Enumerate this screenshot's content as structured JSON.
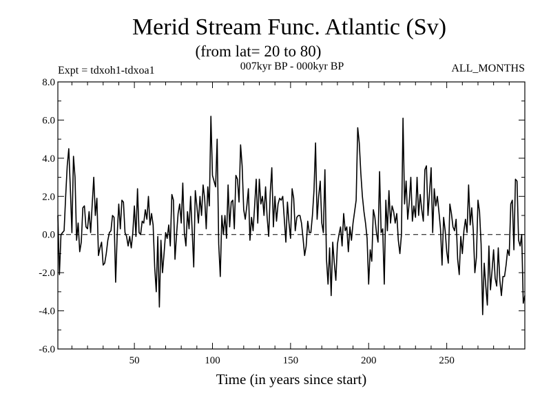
{
  "chart_data": {
    "type": "line",
    "title": "Merid Stream Func. Atlantic (Sv)",
    "subtitle": "(from lat= 20 to 80)",
    "experiment": "Expt = tdxoh1-tdxoa1",
    "period": "007kyr BP - 000kyr BP",
    "months": "ALL_MONTHS",
    "xlabel": "Time (in years since start)",
    "ylabel": "",
    "xlim": [
      1,
      300
    ],
    "ylim": [
      -6.0,
      8.0
    ],
    "x_ticks": [
      50,
      100,
      150,
      200,
      250
    ],
    "x_tick_labels": [
      "50",
      "100",
      "150",
      "200",
      "250"
    ],
    "y_ticks": [
      -6,
      -4,
      -2,
      0,
      2,
      4,
      6,
      8
    ],
    "y_tick_labels": [
      "-6.0",
      "-4.0",
      "-2.0",
      "0.0",
      "2.0",
      "4.0",
      "6.0",
      "8.0"
    ],
    "reference_line": 0.0,
    "series": [
      {
        "name": "Merid Stream Func. Atlantic",
        "x_start": 1,
        "x_step": 1,
        "values": [
          1.0,
          -2.1,
          0.0,
          0.1,
          0.2,
          2.0,
          3.6,
          4.5,
          2.4,
          0.1,
          4.1,
          3.0,
          -0.3,
          0.6,
          -0.9,
          -0.4,
          1.4,
          1.5,
          0.4,
          0.3,
          1.2,
          0.1,
          1.6,
          3.0,
          1.0,
          1.9,
          -1.1,
          -0.7,
          -0.4,
          -1.6,
          -1.5,
          -1.0,
          -0.3,
          0.1,
          0.2,
          1.0,
          0.9,
          -2.5,
          0.0,
          1.6,
          0.3,
          1.8,
          1.7,
          0.1,
          -0.1,
          -0.6,
          -0.1,
          -0.7,
          0.1,
          1.5,
          -0.1,
          2.4,
          0.1,
          0.0,
          0.7,
          0.6,
          1.3,
          0.8,
          2.0,
          0.5,
          1.1,
          0.5,
          -1.7,
          -3.0,
          -0.1,
          -3.8,
          -0.3,
          -2.0,
          -1.0,
          0.1,
          -0.2,
          0.5,
          -0.6,
          2.1,
          1.8,
          -1.3,
          0.0,
          1.1,
          1.6,
          0.6,
          2.7,
          0.1,
          -0.6,
          1.2,
          0.3,
          2.0,
          0.2,
          -1.7,
          2.3,
          1.5,
          0.6,
          2.0,
          1.0,
          2.6,
          1.9,
          0.3,
          2.5,
          1.5,
          6.2,
          3.1,
          2.8,
          2.5,
          5.0,
          -0.5,
          -2.2,
          1.0,
          0.0,
          1.0,
          -0.2,
          2.6,
          0.4,
          1.7,
          1.8,
          0.3,
          3.1,
          2.9,
          1.7,
          4.7,
          3.6,
          1.3,
          0.8,
          1.5,
          2.4,
          -0.3,
          0.9,
          0.2,
          1.5,
          2.9,
          0.6,
          2.9,
          1.6,
          2.0,
          1.0,
          2.5,
          0.9,
          -0.1,
          2.2,
          3.5,
          0.4,
          2.0,
          0.7,
          1.6,
          1.9,
          1.8,
          2.0,
          0.8,
          -0.4,
          1.7,
          0.6,
          -0.2,
          2.4,
          1.9,
          0.2,
          0.9,
          1.0,
          1.0,
          0.6,
          -0.2,
          -1.1,
          -0.6,
          0.7,
          0.1,
          0.1,
          1.0,
          2.3,
          4.8,
          0.8,
          2.0,
          2.8,
          0.6,
          0.1,
          3.4,
          -1.3,
          -2.6,
          -0.7,
          -3.2,
          -0.4,
          -1.5,
          -2.4,
          -0.5,
          0.0,
          0.4,
          -0.6,
          1.1,
          0.2,
          0.4,
          -0.9,
          0.4,
          -0.3,
          0.6,
          1.2,
          1.8,
          5.6,
          4.8,
          3.2,
          2.0,
          1.2,
          0.6,
          -0.2,
          -2.6,
          -0.8,
          -1.4,
          1.3,
          0.9,
          0.1,
          -0.4,
          3.3,
          0.1,
          0.3,
          -2.6,
          1.8,
          0.2,
          2.3,
          0.6,
          1.5,
          1.2,
          0.6,
          1.1,
          -0.3,
          -1.0,
          0.0,
          6.1,
          1.6,
          2.8,
          0.8,
          1.7,
          3.0,
          0.7,
          1.5,
          0.9,
          3.0,
          1.0,
          2.1,
          1.3,
          0.7,
          3.4,
          3.6,
          1.0,
          2.2,
          3.5,
          0.1,
          2.4,
          1.5,
          2.0,
          1.2,
          0.3,
          -1.6,
          0.9,
          0.2,
          -0.9,
          -1.5,
          1.6,
          1.1,
          0.4,
          0.2,
          0.8,
          -1.3,
          -2.1,
          -0.1,
          -1.0,
          0.2,
          0.8,
          0.1,
          2.6,
          0.5,
          1.4,
          0.2,
          -2.0,
          -1.2,
          1.8,
          1.2,
          -0.5,
          -4.2,
          -1.5,
          -2.7,
          -3.7,
          -0.6,
          -2.9,
          -1.9,
          -0.8,
          -2.3,
          -2.7,
          -0.7,
          -2.4,
          -3.2,
          -2.2,
          -2.2,
          -1.6,
          -0.8,
          -1.1,
          1.6,
          1.8,
          -0.8,
          2.9,
          2.8,
          -0.3,
          -0.6,
          0.0,
          -3.6,
          -3.2
        ]
      }
    ]
  }
}
